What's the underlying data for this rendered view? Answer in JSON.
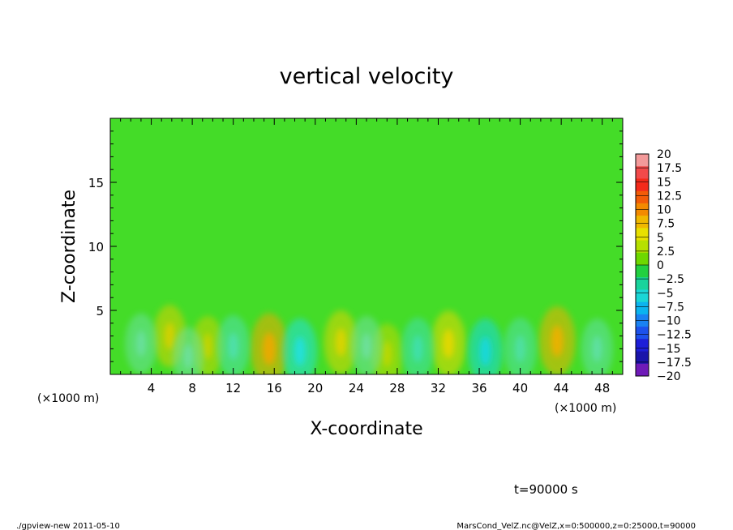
{
  "chart_data": {
    "type": "heatmap",
    "title": "vertical velocity",
    "xlabel": "X-coordinate",
    "ylabel": "Z-coordinate",
    "x_unit": "(×1000 m)",
    "y_unit": "(×1000 m)",
    "xlim": [
      0,
      50
    ],
    "ylim": [
      0,
      20
    ],
    "x_ticks": [
      4,
      8,
      12,
      16,
      20,
      24,
      28,
      32,
      36,
      40,
      44,
      48
    ],
    "y_ticks": [
      5,
      10,
      15
    ],
    "colorbar": {
      "labels": [
        "20",
        "17.5",
        "15",
        "12.5",
        "10",
        "7.5",
        "5",
        "2.5",
        "0",
        "−2.5",
        "−5",
        "−7.5",
        "−10",
        "−12.5",
        "−15",
        "−17.5",
        "−20"
      ],
      "colors": [
        "#f39a9a",
        "#f24a4a",
        "#f42a1a",
        "#f25c08",
        "#f38a00",
        "#f0b800",
        "#e8e000",
        "#b6e000",
        "#6ed800",
        "#22d040",
        "#19d49c",
        "#1ad6d6",
        "#0bb4ef",
        "#1a82f2",
        "#1d52ec",
        "#1d1ed8",
        "#1a14aa",
        "#6f1ab8"
      ]
    },
    "base_value_color": "#44dc28",
    "features": [
      {
        "x": 15.5,
        "z": 2.0,
        "value": 9,
        "color": "#f0a800"
      },
      {
        "x": 43.6,
        "z": 2.6,
        "value": 8,
        "color": "#f0b000"
      },
      {
        "x": 33.0,
        "z": 2.4,
        "value": 6,
        "color": "#e8d800"
      },
      {
        "x": 22.5,
        "z": 2.5,
        "value": 5,
        "color": "#e0d400"
      },
      {
        "x": 5.8,
        "z": 3.0,
        "value": 4,
        "color": "#d8d000"
      },
      {
        "x": 9.5,
        "z": 2.2,
        "value": 3,
        "color": "#c8d400"
      },
      {
        "x": 27.0,
        "z": 1.6,
        "value": 3,
        "color": "#c0d800"
      },
      {
        "x": 18.5,
        "z": 1.8,
        "value": -6,
        "color": "#22e0e0"
      },
      {
        "x": 36.6,
        "z": 1.8,
        "value": -6,
        "color": "#18d8e0"
      },
      {
        "x": 30.0,
        "z": 2.0,
        "value": -4,
        "color": "#40e0b0"
      },
      {
        "x": 12.0,
        "z": 2.2,
        "value": -4,
        "color": "#50e0b0"
      },
      {
        "x": 40.0,
        "z": 2.0,
        "value": -4,
        "color": "#50e0a8"
      },
      {
        "x": 3.0,
        "z": 2.4,
        "value": -3,
        "color": "#6ae0a0"
      },
      {
        "x": 47.5,
        "z": 2.0,
        "value": -3,
        "color": "#60e0a8"
      },
      {
        "x": 25.0,
        "z": 2.2,
        "value": -3,
        "color": "#70e0a0"
      },
      {
        "x": 7.6,
        "z": 1.4,
        "value": -2,
        "color": "#70e0a0"
      }
    ],
    "time_label": "t=90000 s"
  },
  "footer": {
    "program": "./gpview-new  2011-05-10",
    "source": "MarsCond_VelZ.nc@VelZ,x=0:500000,z=0:25000,t=90000"
  }
}
